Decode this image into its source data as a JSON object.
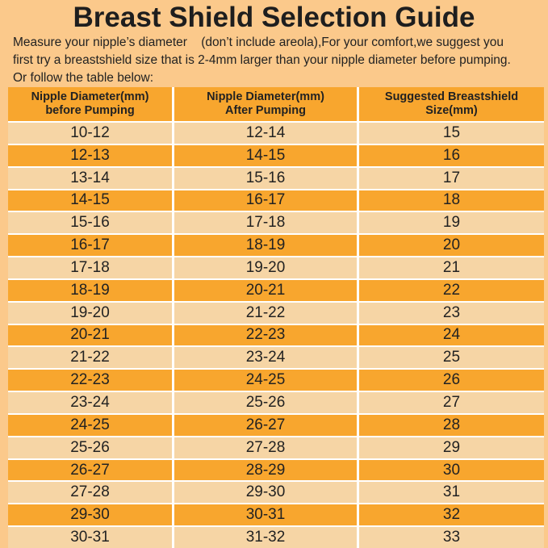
{
  "header": {
    "title": "Breast Shield Selection Guide",
    "intro": [
      "Measure your nipple’s diameter    (don’t include areola),For your comfort,we suggest you",
      "first try a breastshield size that is 2-4mm larger than your nipple diameter before pumping.",
      "Or follow the table below:"
    ]
  },
  "table": {
    "columns": [
      [
        "Nipple Diameter(mm)",
        "before Pumping"
      ],
      [
        "Nipple Diameter(mm)",
        "After Pumping"
      ],
      [
        "Suggested Breastshield",
        "Size(mm)"
      ]
    ],
    "rows": [
      [
        "10-12",
        "12-14",
        "15"
      ],
      [
        "12-13",
        "14-15",
        "16"
      ],
      [
        "13-14",
        "15-16",
        "17"
      ],
      [
        "14-15",
        "16-17",
        "18"
      ],
      [
        "15-16",
        "17-18",
        "19"
      ],
      [
        "16-17",
        "18-19",
        "20"
      ],
      [
        "17-18",
        "19-20",
        "21"
      ],
      [
        "18-19",
        "20-21",
        "22"
      ],
      [
        "19-20",
        "21-22",
        "23"
      ],
      [
        "20-21",
        "22-23",
        "24"
      ],
      [
        "21-22",
        "23-24",
        "25"
      ],
      [
        "22-23",
        "24-25",
        "26"
      ],
      [
        "23-24",
        "25-26",
        "27"
      ],
      [
        "24-25",
        "26-27",
        "28"
      ],
      [
        "25-26",
        "27-28",
        "29"
      ],
      [
        "26-27",
        "28-29",
        "30"
      ],
      [
        "27-28",
        "29-30",
        "31"
      ],
      [
        "29-30",
        "30-31",
        "32"
      ],
      [
        "30-31",
        "31-32",
        "33"
      ]
    ]
  }
}
